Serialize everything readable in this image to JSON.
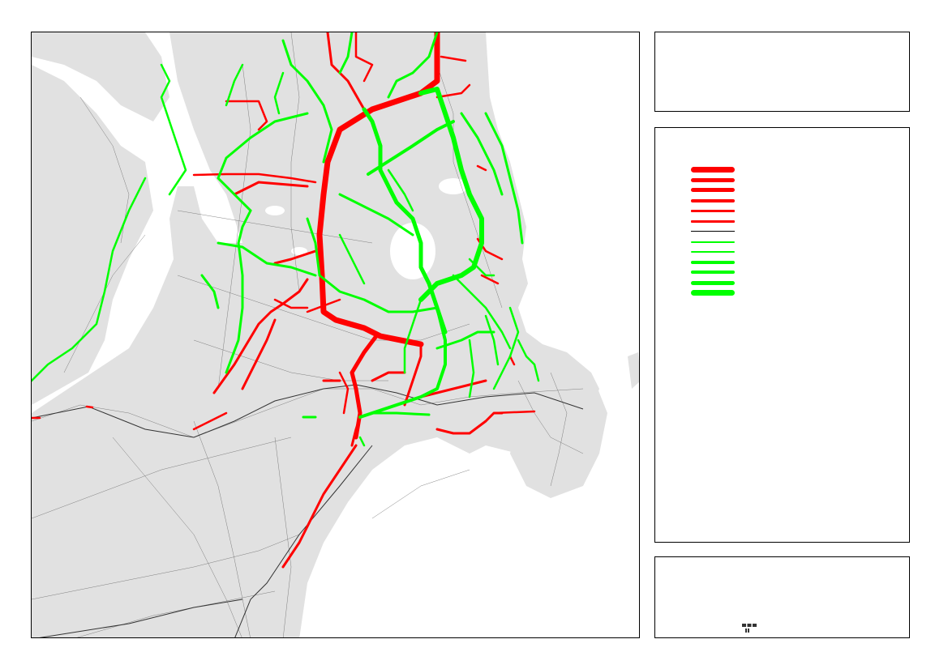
{
  "map": {
    "land_color": "#e1e1e1",
    "sea_color": "#ffffff",
    "road_color": "#555555",
    "increase_color": "#ff0000",
    "decrease_color": "#00ff00"
  },
  "title": {
    "text": ""
  },
  "legend": {
    "items": [
      {
        "label": "",
        "color": "#ff0000",
        "weight": 7
      },
      {
        "label": "",
        "color": "#ff0000",
        "weight": 5.5
      },
      {
        "label": "",
        "color": "#ff0000",
        "weight": 4.5
      },
      {
        "label": "",
        "color": "#ff0000",
        "weight": 3.5
      },
      {
        "label": "",
        "color": "#ff0000",
        "weight": 2.8
      },
      {
        "label": "",
        "color": "#ff0000",
        "weight": 2.2
      },
      {
        "label": "",
        "color": "#000000",
        "weight": 1
      },
      {
        "label": "",
        "color": "#00ff00",
        "weight": 2.2
      },
      {
        "label": "",
        "color": "#00ff00",
        "weight": 2.8
      },
      {
        "label": "",
        "color": "#00ff00",
        "weight": 3.5
      },
      {
        "label": "",
        "color": "#00ff00",
        "weight": 4.5
      },
      {
        "label": "",
        "color": "#00ff00",
        "weight": 5.5
      },
      {
        "label": "",
        "color": "#00ff00",
        "weight": 7
      }
    ]
  },
  "info": {
    "text": "",
    "logo_icon": "logo-icon"
  }
}
